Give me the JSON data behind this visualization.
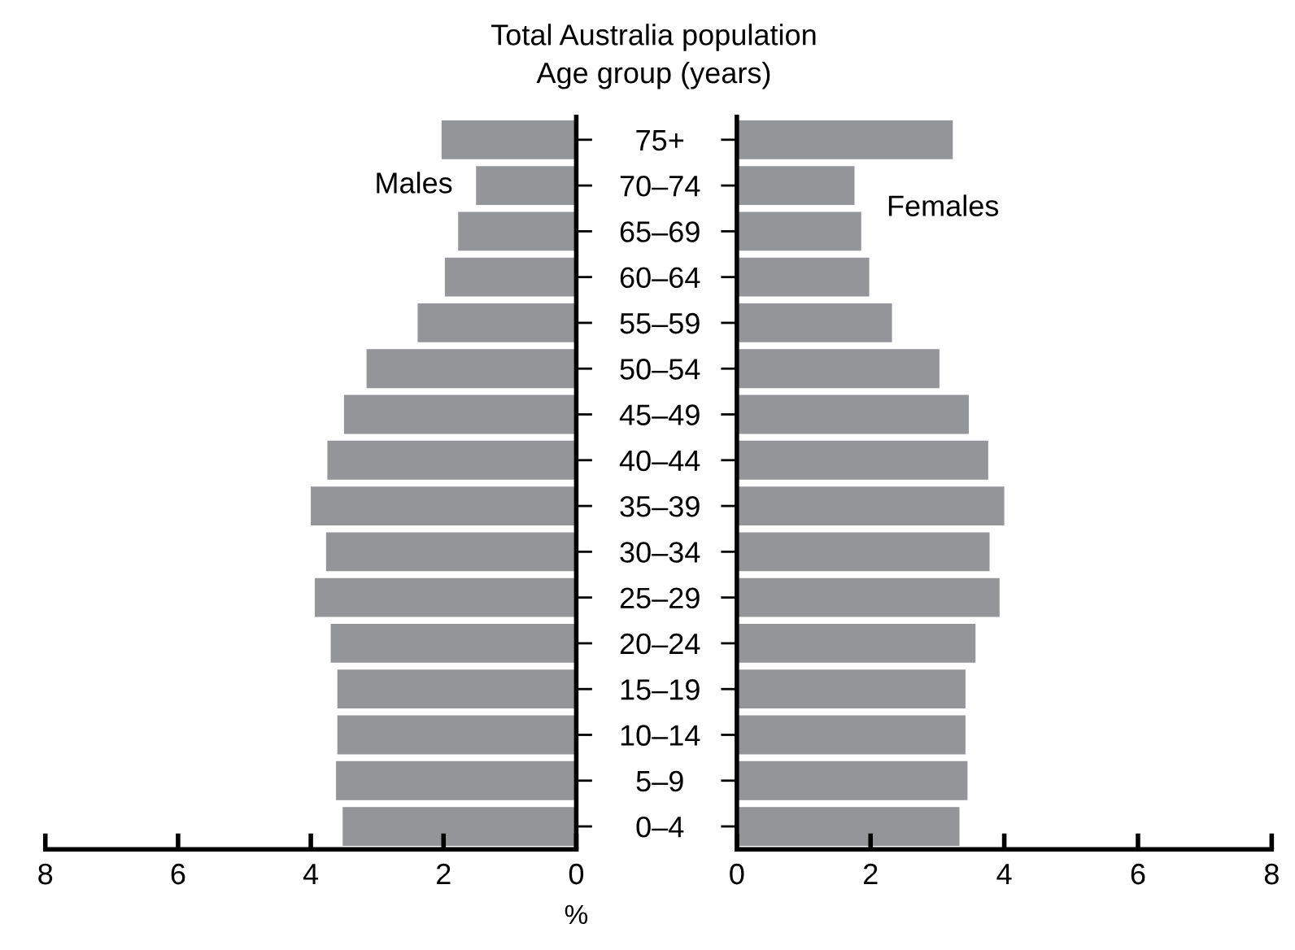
{
  "chart_data": [
    {
      "type": "bar",
      "orientation": "horizontal",
      "title": "Total Australia population",
      "subtitle": "Age group (years)",
      "xlabel": "%",
      "categories": [
        "75+",
        "70–74",
        "65–69",
        "60–64",
        "55–59",
        "50–54",
        "45–49",
        "40–44",
        "35–39",
        "30–34",
        "25–29",
        "20–24",
        "15–19",
        "10–14",
        "5–9",
        "0–4"
      ],
      "series": [
        {
          "name": "Males",
          "color": "#939598",
          "values": [
            2.03,
            1.51,
            1.78,
            1.98,
            2.39,
            3.16,
            3.5,
            3.75,
            4.0,
            3.77,
            3.94,
            3.7,
            3.6,
            3.6,
            3.62,
            3.52
          ]
        }
      ],
      "xlim": [
        8,
        0
      ],
      "xticks": [
        8,
        6,
        4,
        2,
        0
      ],
      "grid": false,
      "legend": false
    },
    {
      "type": "bar",
      "orientation": "horizontal",
      "categories": [
        null,
        null,
        null,
        null,
        null,
        null,
        null,
        null,
        null,
        null,
        null,
        null,
        null,
        null,
        null,
        null
      ],
      "series": [
        {
          "name": "Females",
          "color": "#939598",
          "values": [
            3.23,
            1.76,
            1.86,
            1.98,
            2.32,
            3.03,
            3.47,
            3.76,
            4.0,
            3.78,
            3.93,
            3.57,
            3.42,
            3.42,
            3.45,
            3.33
          ]
        }
      ],
      "xlim": [
        0,
        8
      ],
      "xticks": [
        0,
        2,
        4,
        6,
        8
      ],
      "grid": false,
      "legend": false,
      "tick_labels": "x"
    }
  ]
}
